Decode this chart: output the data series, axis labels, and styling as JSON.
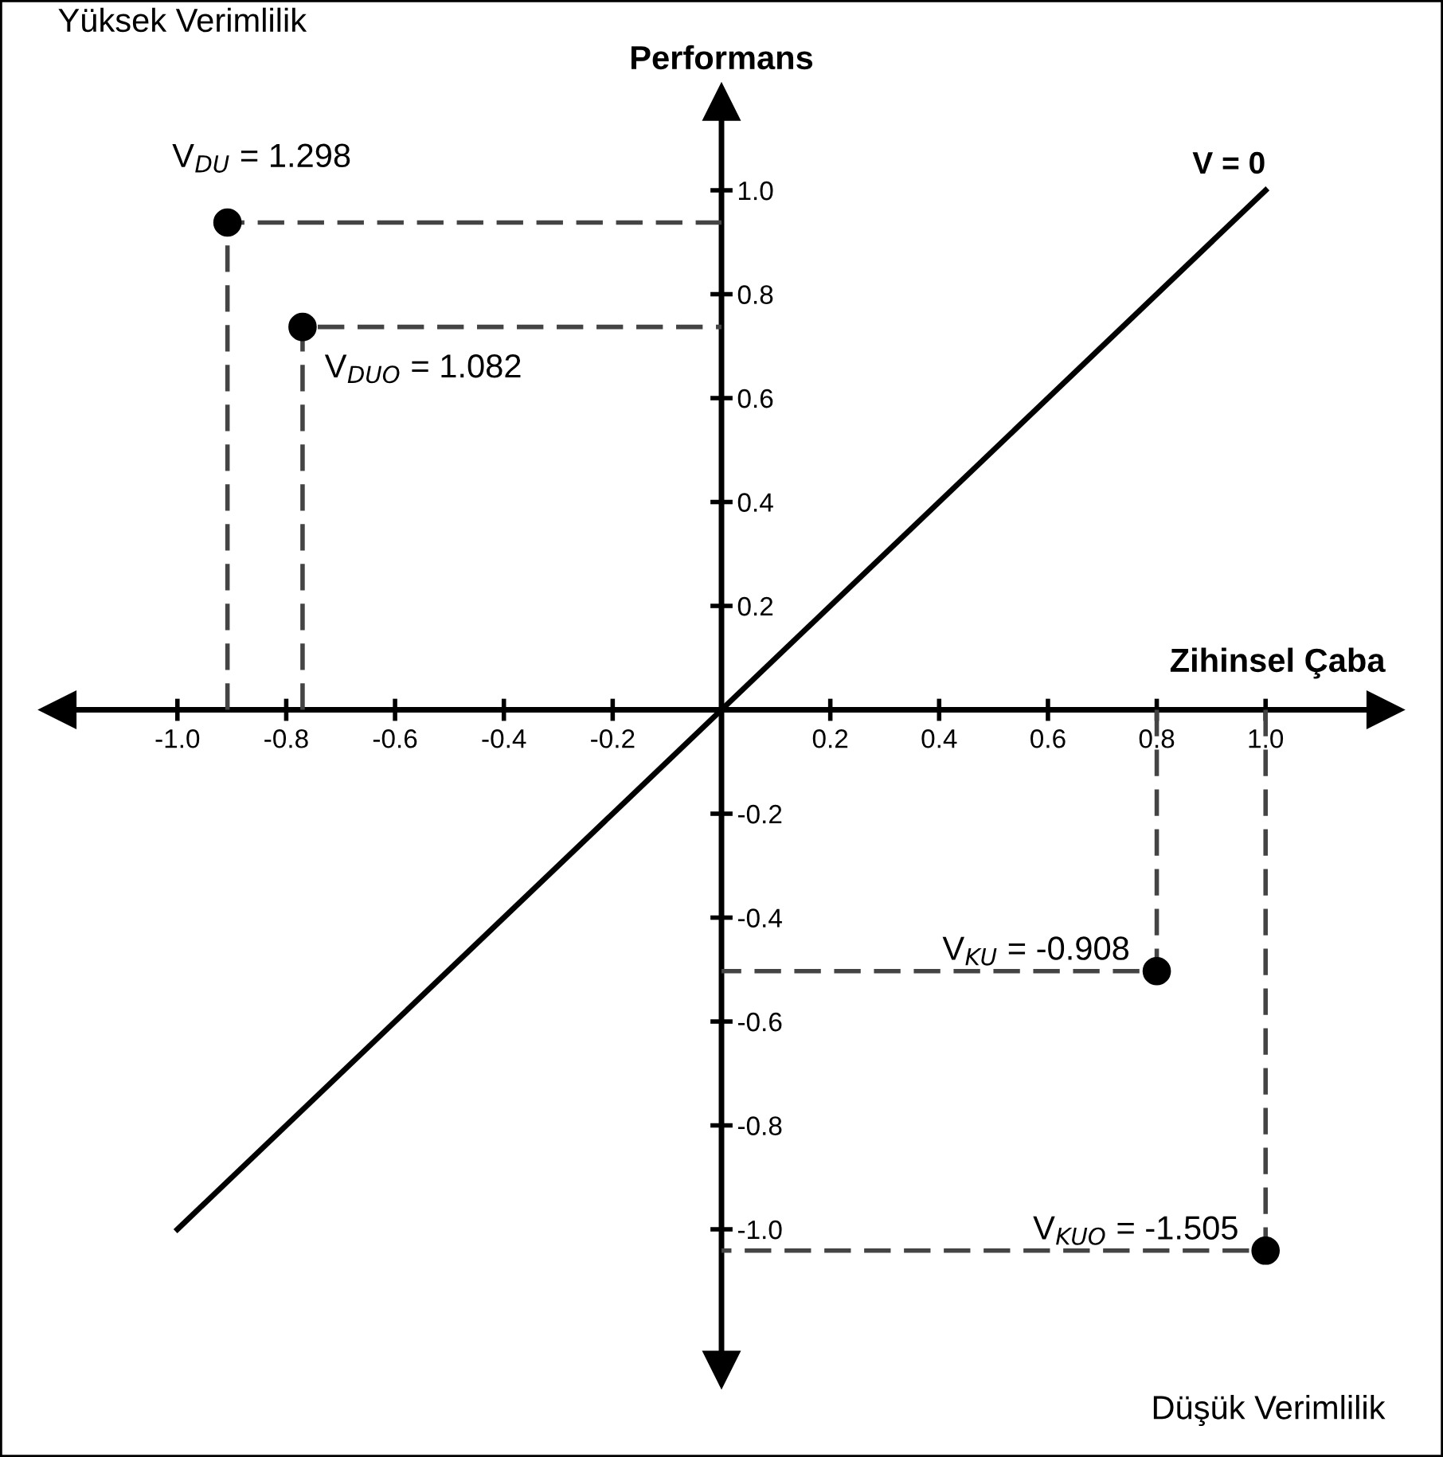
{
  "chart_data": {
    "type": "scatter",
    "xlabel": "Zihinsel Çaba",
    "ylabel": "Performans",
    "xlim": [
      -1.22,
      1.22
    ],
    "ylim": [
      -1.27,
      1.17
    ],
    "xticks": [
      {
        "value": -1.0,
        "label": "-1.0"
      },
      {
        "value": -0.8,
        "label": "-0.8"
      },
      {
        "value": -0.6,
        "label": "-0.6"
      },
      {
        "value": -0.4,
        "label": "-0.4"
      },
      {
        "value": -0.2,
        "label": "-0.2"
      },
      {
        "value": 0.2,
        "label": "0.2"
      },
      {
        "value": 0.4,
        "label": "0.4"
      },
      {
        "value": 0.6,
        "label": "0.6"
      },
      {
        "value": 0.8,
        "label": "0.8"
      },
      {
        "value": 1.0,
        "label": "1.0"
      }
    ],
    "yticks": [
      {
        "value": -1.0,
        "label": "-1.0"
      },
      {
        "value": -0.8,
        "label": "-0.8"
      },
      {
        "value": -0.6,
        "label": "-0.6"
      },
      {
        "value": -0.4,
        "label": "-0.4"
      },
      {
        "value": -0.2,
        "label": "-0.2"
      },
      {
        "value": 0.2,
        "label": "0.2"
      },
      {
        "value": 0.4,
        "label": "0.4"
      },
      {
        "value": 0.6,
        "label": "0.6"
      },
      {
        "value": 0.8,
        "label": "0.8"
      },
      {
        "value": 1.0,
        "label": "1.0"
      }
    ],
    "grid": false,
    "series": [
      {
        "type": "line",
        "name": "V = 0",
        "color": "#000000",
        "line_style": "solid",
        "marker": "none",
        "x": [
          -1.0,
          1.0
        ],
        "values": [
          -1.0,
          1.0
        ]
      },
      {
        "type": "line",
        "color": "#444444",
        "line_style": "dashed",
        "marker": "none",
        "x": [
          -0.908,
          -0.908,
          0
        ],
        "values": [
          0,
          0.938,
          0.938
        ]
      },
      {
        "type": "line",
        "color": "#444444",
        "line_style": "dashed",
        "marker": "none",
        "x": [
          -0.77,
          -0.77,
          0
        ],
        "values": [
          0,
          0.737,
          0.737
        ]
      },
      {
        "type": "line",
        "color": "#444444",
        "line_style": "dashed",
        "marker": "none",
        "x": [
          0.8,
          0.8,
          0
        ],
        "values": [
          0,
          -0.503,
          -0.503
        ]
      },
      {
        "type": "line",
        "color": "#444444",
        "line_style": "dashed",
        "marker": "none",
        "x": [
          1.0,
          1.0,
          0
        ],
        "values": [
          0,
          -1.041,
          -1.041
        ]
      },
      {
        "color": "#000000",
        "marker": "circle",
        "x": [
          -0.908,
          -0.77,
          0.8,
          1.0
        ],
        "values": [
          0.938,
          0.737,
          -0.503,
          -1.041
        ]
      }
    ],
    "annotations": [
      {
        "text": "V$_{DU}$ = 1.298",
        "x": -0.908,
        "y": 0.938
      },
      {
        "text": "V$_{DUO}$ = 1.082",
        "x": -0.77,
        "y": 0.737
      },
      {
        "text": "V$_{KU}$ = -0.908",
        "x": 0.8,
        "y": -0.503
      },
      {
        "text": "V$_{KUO}$ = -1.505",
        "x": 1.0,
        "y": -1.041
      },
      "Yüksek Verimlilik",
      "Düşük Verimlilik"
    ]
  }
}
